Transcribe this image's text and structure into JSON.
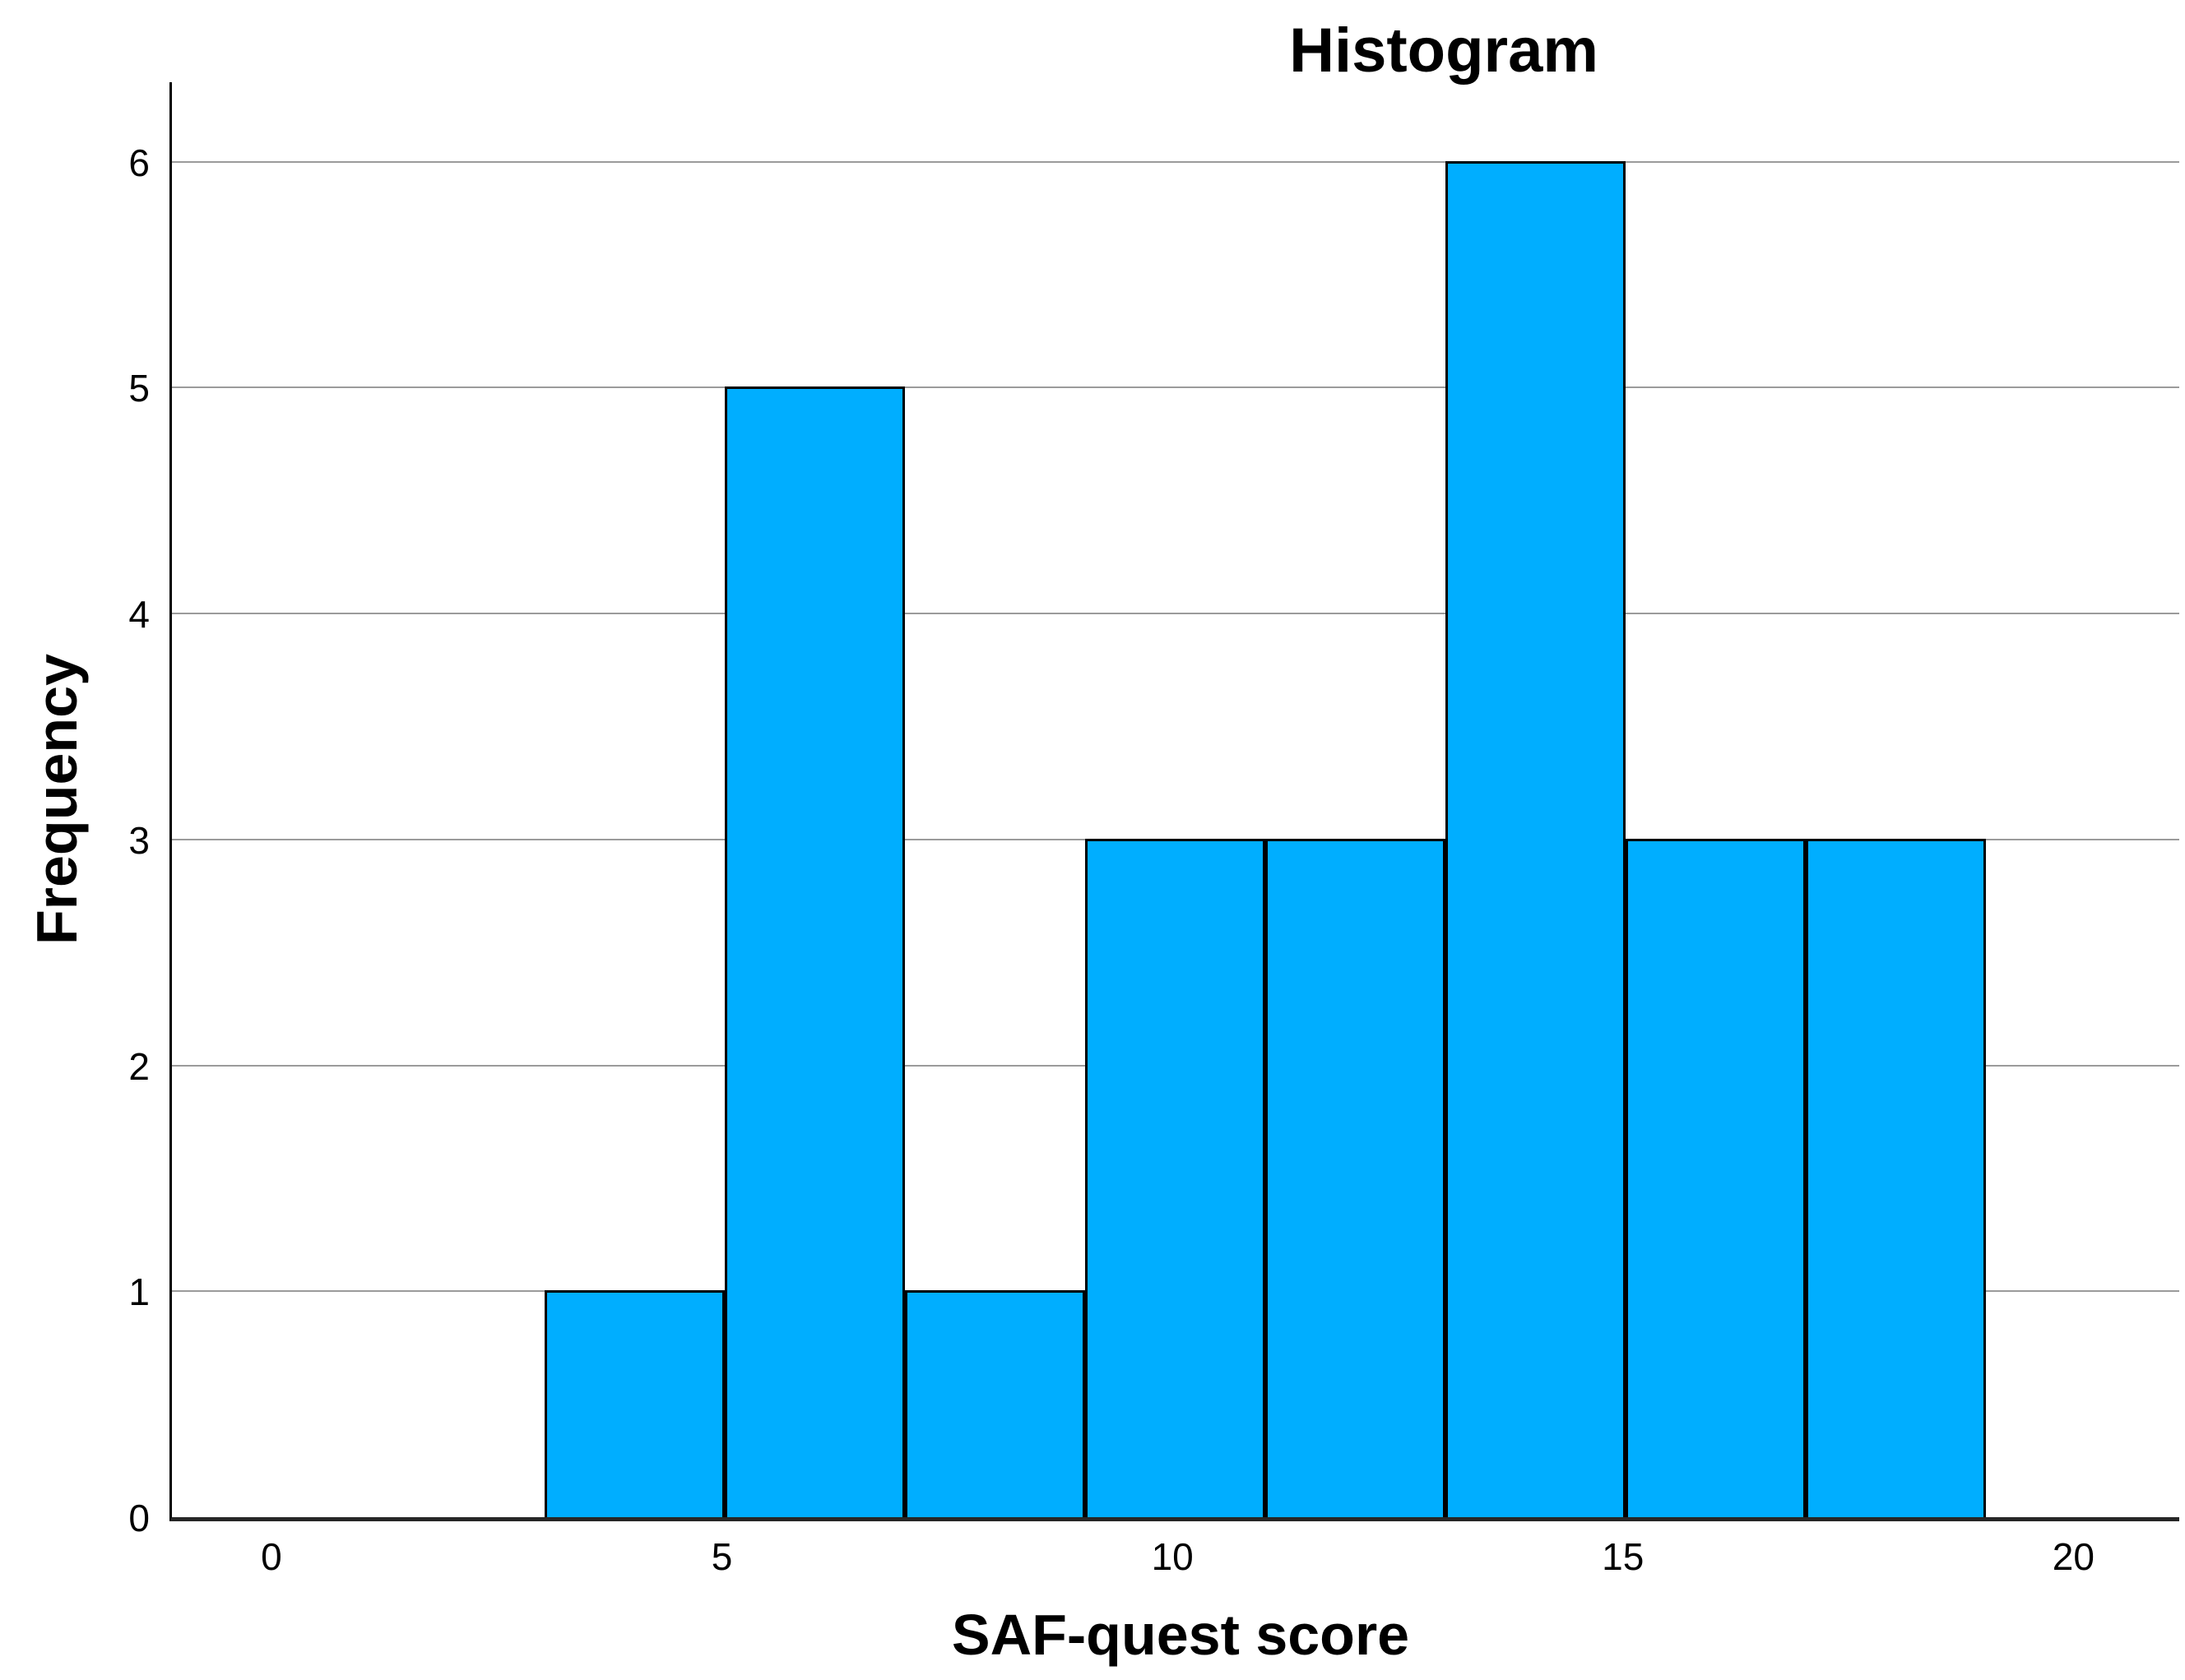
{
  "chart_data": {
    "type": "bar",
    "subtype": "histogram",
    "title": "Histogram",
    "xlabel": "SAF-quest score",
    "ylabel": "Frequency",
    "x_tick_values": [
      0,
      5,
      10,
      15,
      20
    ],
    "x_tick_labels": [
      "0",
      "5",
      "10",
      "15",
      "20"
    ],
    "y_tick_values": [
      0,
      1,
      2,
      3,
      4,
      5,
      6
    ],
    "y_tick_labels": [
      "0",
      "1",
      "2",
      "3",
      "4",
      "5",
      "6"
    ],
    "xlim": [
      -1.132,
      21.147
    ],
    "ylim": [
      0,
      6.352
    ],
    "grid": "horizontal-only",
    "legend": "none",
    "bins": [
      {
        "range": [
          3,
          5
        ],
        "frequency": 1
      },
      {
        "range": [
          5,
          7
        ],
        "frequency": 5
      },
      {
        "range": [
          7,
          9
        ],
        "frequency": 1
      },
      {
        "range": [
          9,
          11
        ],
        "frequency": 3
      },
      {
        "range": [
          11,
          13
        ],
        "frequency": 3
      },
      {
        "range": [
          13,
          15
        ],
        "frequency": 6
      },
      {
        "range": [
          15,
          17
        ],
        "frequency": 3
      },
      {
        "range": [
          17,
          19
        ],
        "frequency": 3
      }
    ],
    "colors": {
      "bar_fill": "#00aeff",
      "bar_border": "#000000",
      "gridline": "#9b9b9b",
      "axis_line": "#000000",
      "baseline": "#262626",
      "background": "#ffffff",
      "text": "#000000"
    }
  }
}
